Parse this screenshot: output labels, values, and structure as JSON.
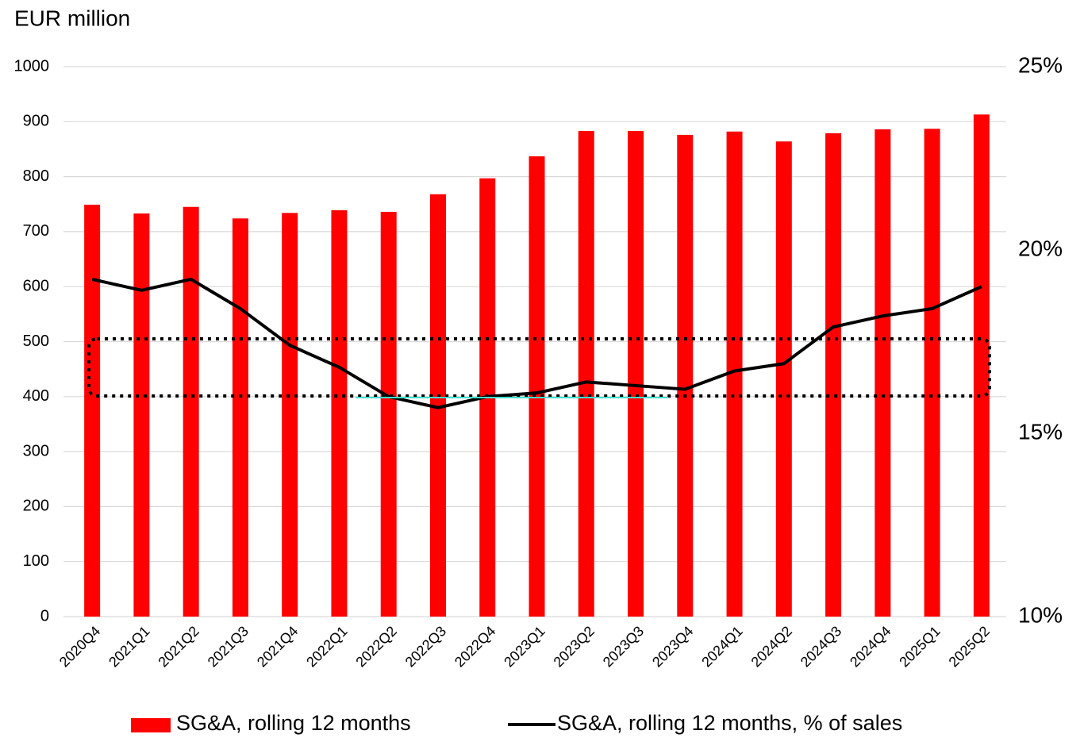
{
  "chart_data": {
    "type": "bar_line",
    "y_label": "EUR million",
    "categories": [
      "2020Q4",
      "2021Q1",
      "2021Q2",
      "2021Q3",
      "2021Q4",
      "2022Q1",
      "2022Q2",
      "2022Q3",
      "2022Q4",
      "2023Q1",
      "2023Q2",
      "2023Q3",
      "2023Q4",
      "2024Q1",
      "2024Q2",
      "2024Q3",
      "2024Q4",
      "2025Q1",
      "2025Q2"
    ],
    "series": [
      {
        "name": "SG&A, rolling 12 months",
        "color": "#ff0000",
        "type": "bar",
        "values": [
          749,
          733,
          745,
          724,
          734,
          739,
          736,
          768,
          797,
          837,
          883,
          883,
          876,
          882,
          864,
          879,
          886,
          887,
          913
        ]
      },
      {
        "name": "SG&A, rolling 12 months, % of sales",
        "color": "#000000",
        "type": "line",
        "axis": "y2",
        "values": [
          19.2,
          18.9,
          19.2,
          18.4,
          17.4,
          16.8,
          16.0,
          15.7,
          16.0,
          16.1,
          16.4,
          16.3,
          16.2,
          16.7,
          16.9,
          17.9,
          18.2,
          18.4,
          19.0
        ]
      }
    ],
    "ylim": [
      0,
      1000
    ],
    "yticks": [
      0,
      100,
      200,
      300,
      400,
      500,
      600,
      700,
      800,
      900,
      1000
    ],
    "y2lim": [
      10,
      25
    ],
    "y2ticks": [
      {
        "value": 10,
        "label": "10%"
      },
      {
        "value": 15,
        "label": "15%"
      },
      {
        "value": 20,
        "label": "20%"
      },
      {
        "value": 25,
        "label": "25%"
      }
    ],
    "grid": true
  }
}
